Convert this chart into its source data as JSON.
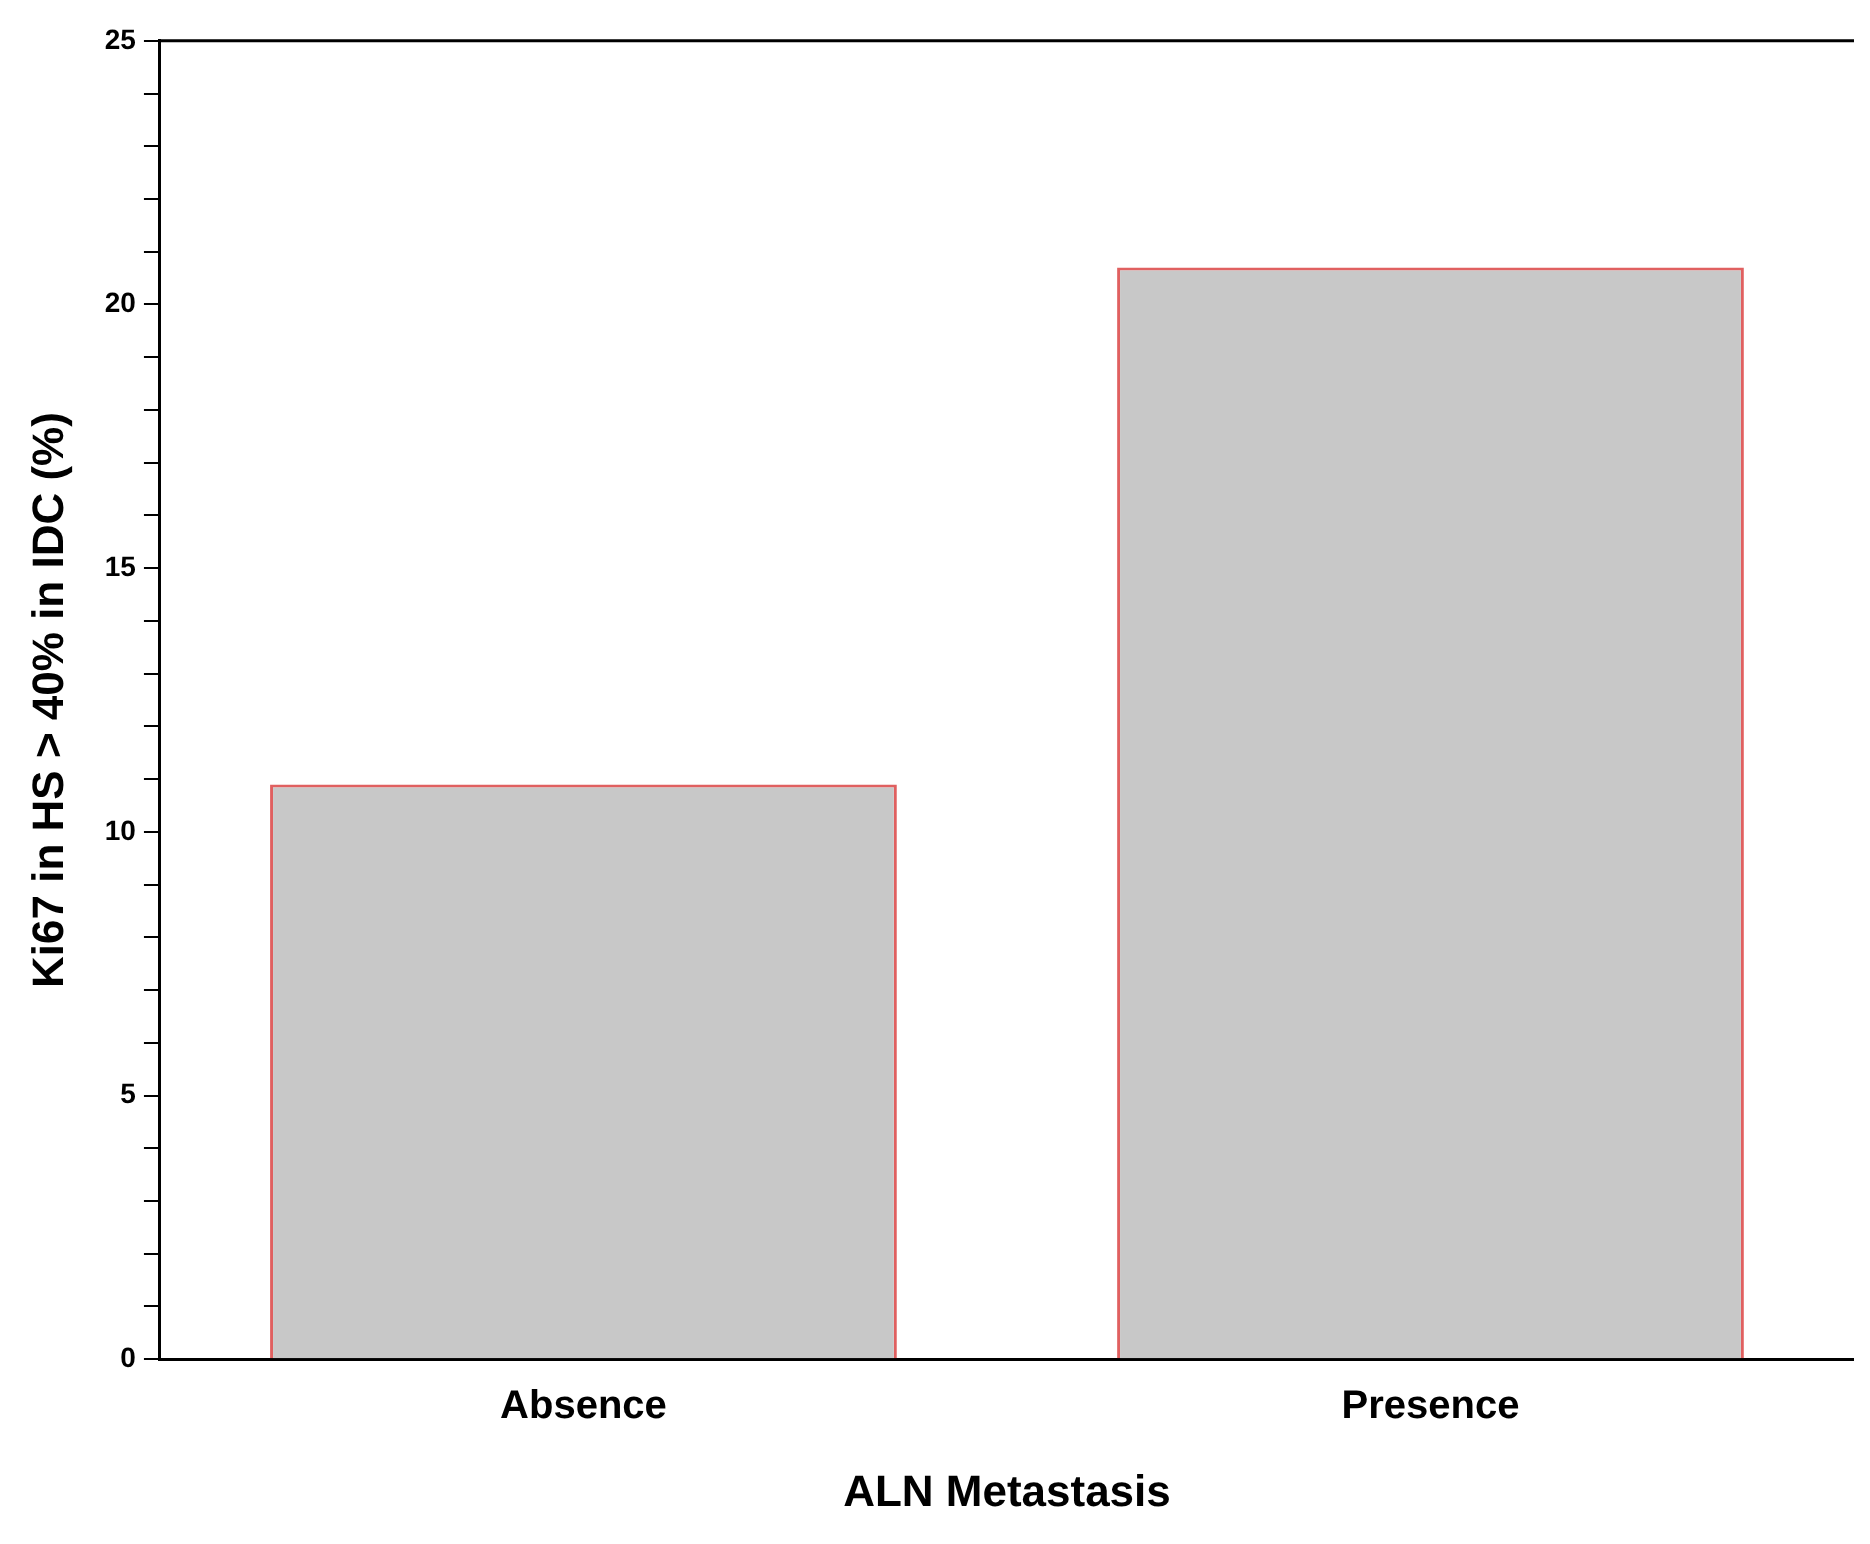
{
  "chart_data": {
    "type": "bar",
    "xlabel": "ALN Metastasis",
    "ylabel": "Ki67 in HS > 40% in IDC (%)",
    "categories": [
      "Absence",
      "Presence"
    ],
    "values": [
      10.9,
      20.7
    ],
    "color": "#c8c8c8",
    "ylim": [
      0,
      25
    ],
    "yticks": [
      0,
      {
        "value": 1,
        "label": null
      },
      {
        "value": 2,
        "label": null
      },
      {
        "value": 3,
        "label": null
      },
      {
        "value": 4,
        "label": null
      },
      5,
      {
        "value": 6,
        "label": null
      },
      {
        "value": 7,
        "label": null
      },
      {
        "value": 8,
        "label": null
      },
      {
        "value": 9,
        "label": null
      },
      10,
      {
        "value": 11,
        "label": null
      },
      {
        "value": 12,
        "label": null
      },
      {
        "value": 13,
        "label": null
      },
      {
        "value": 14,
        "label": null
      },
      15,
      {
        "value": 16,
        "label": null
      },
      {
        "value": 17,
        "label": null
      },
      {
        "value": 18,
        "label": null
      },
      {
        "value": 19,
        "label": null
      },
      20,
      {
        "value": 21,
        "label": null
      },
      {
        "value": 22,
        "label": null
      },
      {
        "value": 23,
        "label": null
      },
      {
        "value": 24,
        "label": null
      },
      25
    ],
    "grid": false,
    "legend": false
  }
}
